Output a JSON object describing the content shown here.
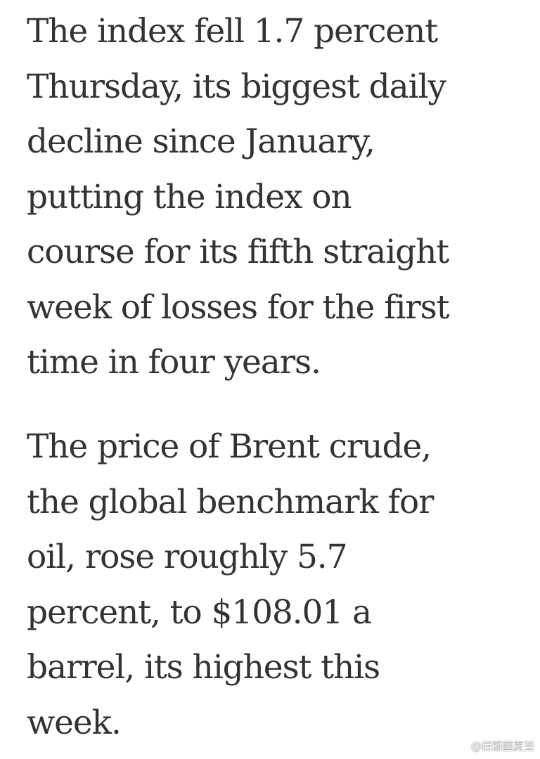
{
  "article": {
    "paragraphs": [
      {
        "lines": [
          "The index fell 1.7 percent",
          "Thursday, its biggest daily",
          "decline since January,",
          "putting the index on",
          "course for its fifth straight",
          "week of losses for the first",
          "time in four years."
        ]
      },
      {
        "lines": [
          "The price of Brent crude,",
          "the global benchmark for",
          "oil, rose roughly 5.7",
          "percent, to $108.01 a",
          "barrel, its highest this",
          "week."
        ]
      }
    ]
  },
  "watermark": {
    "icon": "weibo-icon",
    "text": "@西雅图夏至"
  },
  "colors": {
    "text": "#333333",
    "background": "#ffffff"
  }
}
